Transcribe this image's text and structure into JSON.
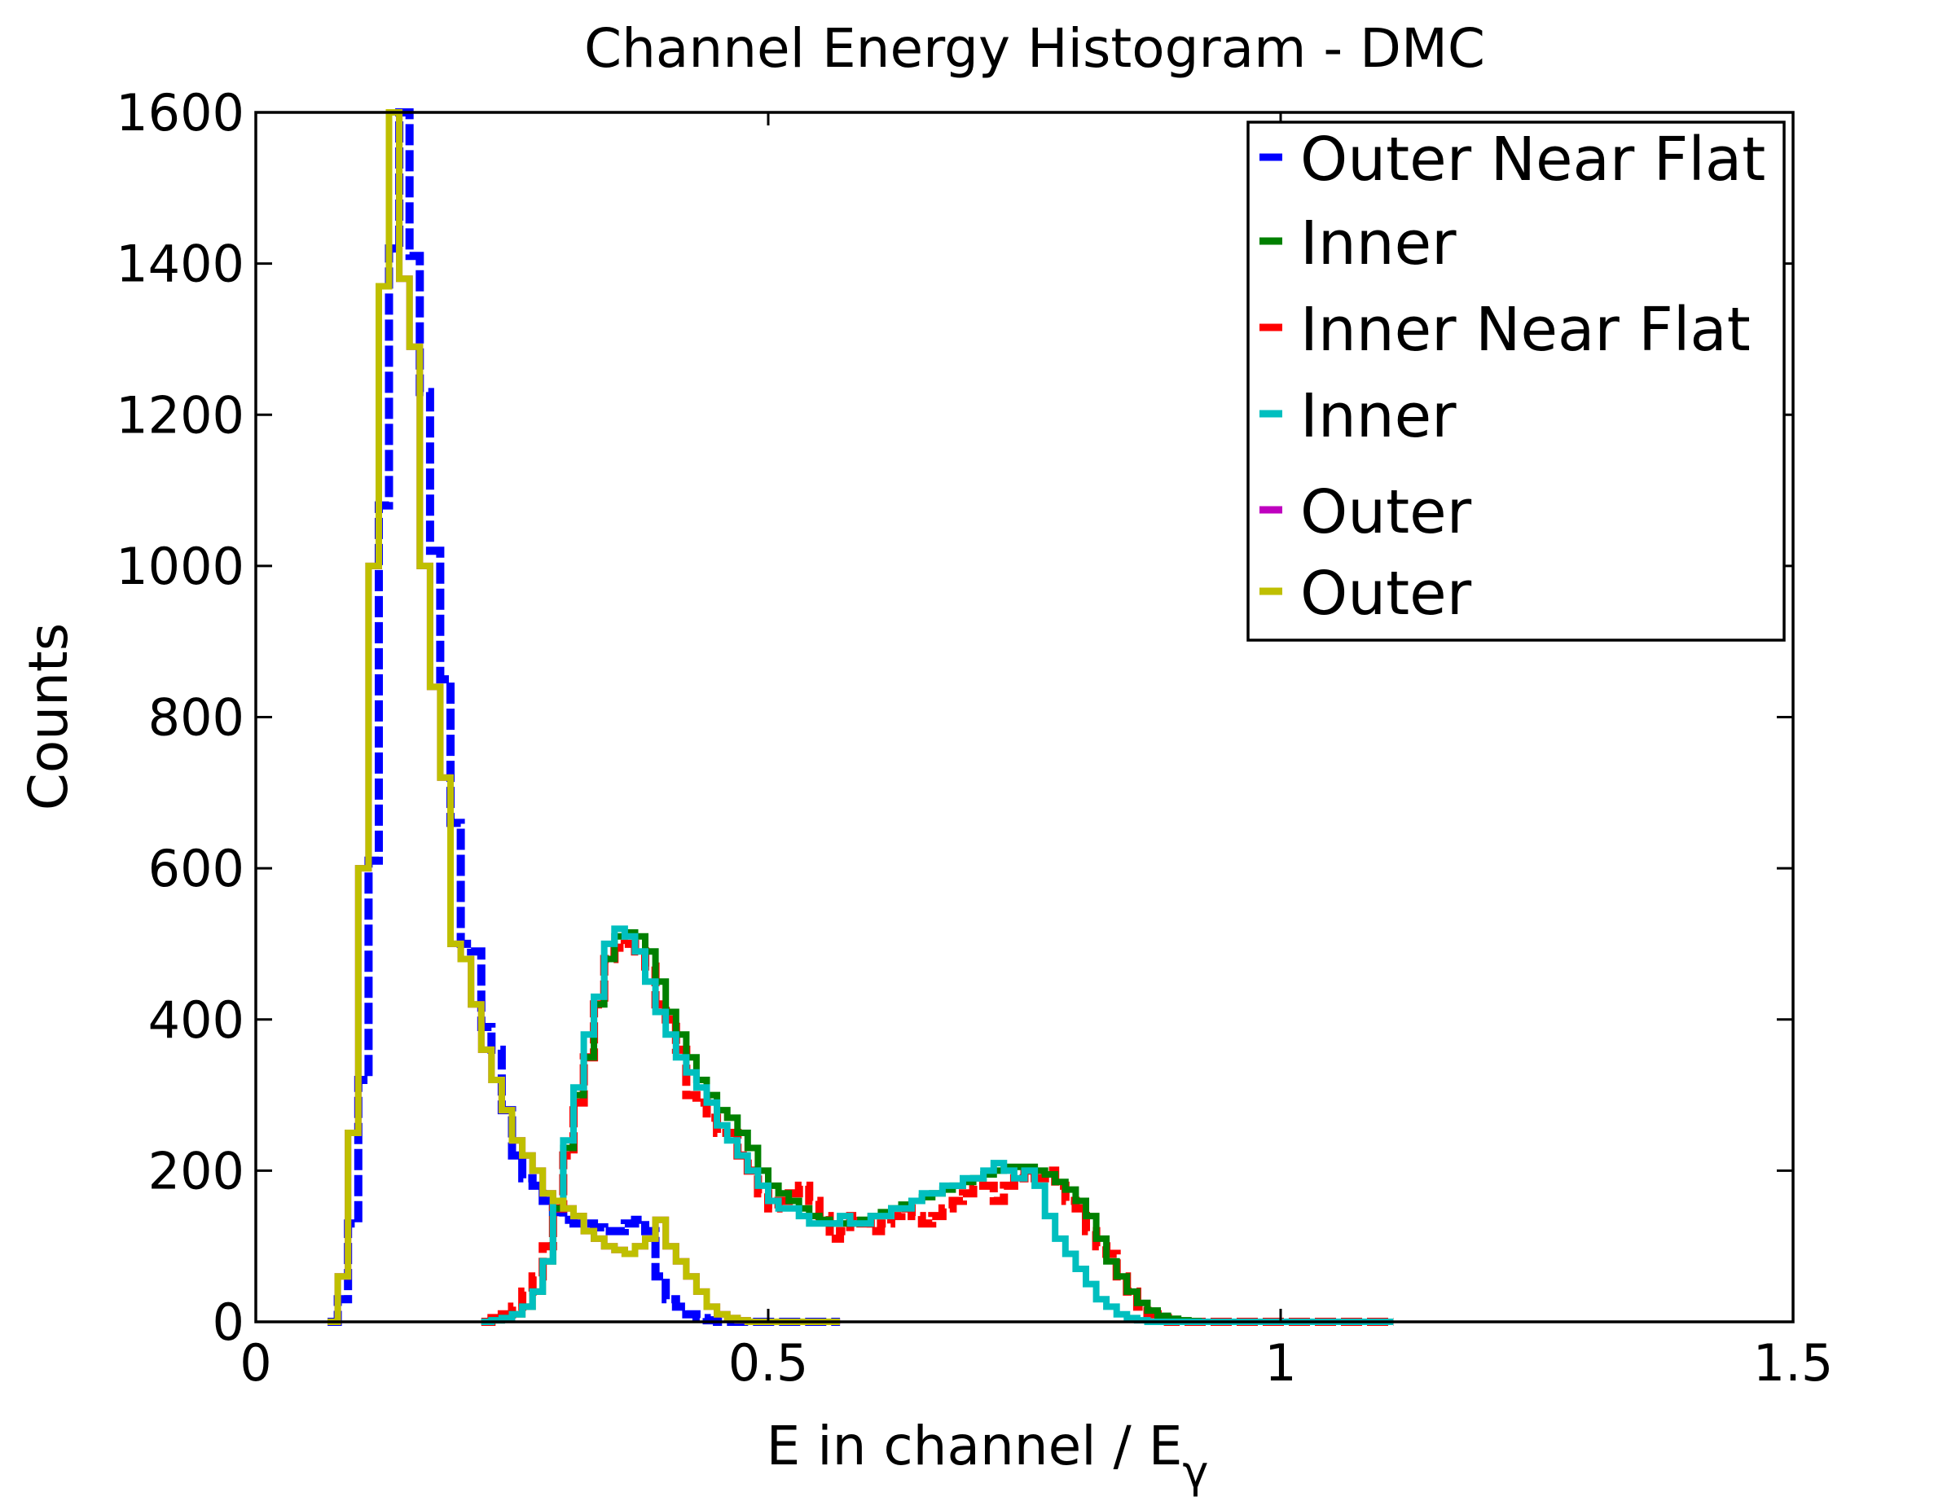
{
  "chart_data": {
    "type": "line",
    "style": "step-histogram",
    "title": "Channel Energy Histogram - DMC",
    "xlabel": "E in channel / E",
    "xlabel_subscript": "γ",
    "ylabel": "Counts",
    "xlim": [
      0,
      1.5
    ],
    "ylim": [
      0,
      1600
    ],
    "xticks": [
      0,
      0.5,
      1,
      1.5
    ],
    "xtick_labels": [
      "0",
      "0.5",
      "1",
      "1.5"
    ],
    "yticks": [
      0,
      200,
      400,
      600,
      800,
      1000,
      1200,
      1400,
      1600
    ],
    "ytick_labels": [
      "0",
      "200",
      "400",
      "600",
      "800",
      "1000",
      "1200",
      "1400",
      "1600"
    ],
    "grid": false,
    "legend_position": "top-right",
    "series": [
      {
        "name": "Outer Near Flat",
        "color": "#0000ff",
        "dashed": true,
        "x": [
          0.07,
          0.08,
          0.09,
          0.1,
          0.11,
          0.12,
          0.13,
          0.14,
          0.15,
          0.16,
          0.17,
          0.18,
          0.19,
          0.2,
          0.21,
          0.22,
          0.23,
          0.24,
          0.25,
          0.26,
          0.27,
          0.28,
          0.29,
          0.3,
          0.31,
          0.32,
          0.33,
          0.34,
          0.35,
          0.36,
          0.37,
          0.38,
          0.39,
          0.4,
          0.41,
          0.42,
          0.43,
          0.44,
          0.45,
          0.46,
          0.47,
          0.48,
          0.49,
          0.5,
          0.51,
          0.52,
          0.53,
          0.54,
          0.55,
          0.56
        ],
        "values": [
          0,
          30,
          130,
          320,
          610,
          1080,
          1420,
          1610,
          1410,
          1230,
          1020,
          850,
          660,
          500,
          490,
          390,
          360,
          280,
          220,
          190,
          180,
          160,
          145,
          135,
          130,
          130,
          125,
          120,
          120,
          130,
          135,
          120,
          60,
          30,
          20,
          10,
          5,
          2,
          0,
          0,
          0,
          0,
          0,
          0,
          0,
          0,
          0,
          0,
          0,
          0
        ]
      },
      {
        "name": "Inner",
        "color": "#008000",
        "dashed": false,
        "x": [
          0.22,
          0.23,
          0.24,
          0.25,
          0.26,
          0.27,
          0.28,
          0.29,
          0.3,
          0.31,
          0.32,
          0.33,
          0.34,
          0.35,
          0.36,
          0.37,
          0.38,
          0.39,
          0.4,
          0.41,
          0.42,
          0.43,
          0.44,
          0.45,
          0.46,
          0.47,
          0.48,
          0.49,
          0.5,
          0.51,
          0.52,
          0.53,
          0.54,
          0.55,
          0.56,
          0.57,
          0.58,
          0.59,
          0.6,
          0.61,
          0.62,
          0.63,
          0.64,
          0.65,
          0.66,
          0.67,
          0.68,
          0.69,
          0.7,
          0.71,
          0.72,
          0.73,
          0.74,
          0.75,
          0.76,
          0.77,
          0.78,
          0.79,
          0.8,
          0.81,
          0.82,
          0.83,
          0.84,
          0.85,
          0.86,
          0.87,
          0.88,
          0.89,
          0.9,
          0.91,
          0.92,
          0.93,
          0.94,
          0.95,
          0.96,
          0.97,
          0.98,
          0.99,
          1,
          1.01,
          1.02,
          1.03,
          1.04,
          1.05,
          1.06,
          1.07,
          1.08,
          1.09,
          1.1
        ],
        "values": [
          0,
          2,
          5,
          10,
          20,
          40,
          80,
          150,
          230,
          300,
          350,
          420,
          480,
          510,
          515,
          510,
          490,
          450,
          410,
          380,
          350,
          320,
          300,
          280,
          270,
          250,
          230,
          200,
          180,
          170,
          160,
          150,
          140,
          135,
          130,
          130,
          130,
          135,
          140,
          145,
          150,
          155,
          160,
          165,
          170,
          175,
          180,
          185,
          190,
          195,
          200,
          205,
          205,
          205,
          200,
          195,
          185,
          175,
          160,
          140,
          110,
          80,
          60,
          40,
          25,
          15,
          8,
          4,
          2,
          1,
          0,
          0,
          0,
          0,
          0,
          0,
          0,
          0,
          0,
          0,
          0,
          0,
          0,
          0,
          0,
          0,
          0,
          0,
          0
        ]
      },
      {
        "name": "Inner Near Flat",
        "color": "#ff0000",
        "dashed": true,
        "x": [
          0.22,
          0.23,
          0.24,
          0.25,
          0.26,
          0.27,
          0.28,
          0.29,
          0.3,
          0.31,
          0.32,
          0.33,
          0.34,
          0.35,
          0.36,
          0.37,
          0.38,
          0.39,
          0.4,
          0.41,
          0.42,
          0.43,
          0.44,
          0.45,
          0.46,
          0.47,
          0.48,
          0.49,
          0.5,
          0.51,
          0.52,
          0.53,
          0.54,
          0.55,
          0.56,
          0.57,
          0.58,
          0.59,
          0.6,
          0.61,
          0.62,
          0.63,
          0.64,
          0.65,
          0.66,
          0.67,
          0.68,
          0.69,
          0.7,
          0.71,
          0.72,
          0.73,
          0.74,
          0.75,
          0.76,
          0.77,
          0.78,
          0.79,
          0.8,
          0.81,
          0.82,
          0.83,
          0.84,
          0.85,
          0.86,
          0.87,
          0.88,
          0.89,
          0.9,
          0.91,
          0.92,
          0.93,
          0.94,
          0.95,
          0.96,
          0.97,
          0.98,
          0.99,
          1,
          1.01,
          1.02,
          1.03,
          1.04,
          1.05,
          1.06,
          1.07,
          1.08,
          1.09,
          1.1
        ],
        "values": [
          0,
          5,
          10,
          20,
          40,
          60,
          100,
          150,
          220,
          290,
          350,
          420,
          480,
          495,
          500,
          490,
          470,
          420,
          400,
          360,
          300,
          290,
          270,
          250,
          250,
          220,
          200,
          170,
          150,
          160,
          170,
          180,
          160,
          140,
          110,
          120,
          140,
          130,
          120,
          130,
          140,
          150,
          140,
          130,
          140,
          150,
          160,
          170,
          180,
          180,
          160,
          180,
          190,
          200,
          190,
          200,
          180,
          160,
          150,
          120,
          100,
          90,
          60,
          40,
          20,
          10,
          5,
          0,
          0,
          0,
          0,
          0,
          0,
          0,
          0,
          0,
          0,
          0,
          0,
          0,
          0,
          0,
          0,
          0,
          0,
          0,
          0,
          0,
          0
        ]
      },
      {
        "name": "Inner",
        "color": "#00bfbf",
        "dashed": false,
        "x": [
          0.22,
          0.23,
          0.24,
          0.25,
          0.26,
          0.27,
          0.28,
          0.29,
          0.3,
          0.31,
          0.32,
          0.33,
          0.34,
          0.35,
          0.36,
          0.37,
          0.38,
          0.39,
          0.4,
          0.41,
          0.42,
          0.43,
          0.44,
          0.45,
          0.46,
          0.47,
          0.48,
          0.49,
          0.5,
          0.51,
          0.52,
          0.53,
          0.54,
          0.55,
          0.56,
          0.57,
          0.58,
          0.59,
          0.6,
          0.61,
          0.62,
          0.63,
          0.64,
          0.65,
          0.66,
          0.67,
          0.68,
          0.69,
          0.7,
          0.71,
          0.72,
          0.73,
          0.74,
          0.75,
          0.76,
          0.77,
          0.78,
          0.79,
          0.8,
          0.81,
          0.82,
          0.83,
          0.84,
          0.85,
          0.86,
          0.87,
          0.88,
          0.89,
          0.9,
          0.91,
          0.92,
          0.93,
          0.94,
          0.95,
          0.96,
          0.97,
          0.98,
          0.99,
          1,
          1.01,
          1.02,
          1.03,
          1.04,
          1.05,
          1.06,
          1.07,
          1.08,
          1.09,
          1.1
        ],
        "values": [
          0,
          2,
          5,
          10,
          20,
          40,
          80,
          160,
          240,
          310,
          380,
          430,
          500,
          520,
          510,
          490,
          450,
          410,
          380,
          350,
          330,
          310,
          290,
          260,
          240,
          220,
          200,
          180,
          160,
          150,
          150,
          140,
          130,
          130,
          130,
          140,
          130,
          130,
          140,
          140,
          150,
          150,
          160,
          170,
          170,
          180,
          180,
          190,
          190,
          200,
          210,
          200,
          190,
          200,
          180,
          140,
          110,
          90,
          70,
          50,
          30,
          20,
          10,
          5,
          2,
          0,
          0,
          0,
          0,
          0,
          0,
          0,
          0,
          0,
          0,
          0,
          0,
          0,
          0,
          0,
          0,
          0,
          0,
          0,
          0,
          0,
          0,
          0,
          0
        ]
      },
      {
        "name": "Outer",
        "color": "#bf00bf",
        "dashed": false,
        "x": [
          0.07,
          0.08,
          0.09,
          0.1,
          0.11,
          0.12,
          0.13,
          0.14,
          0.15,
          0.16,
          0.17,
          0.18,
          0.19,
          0.2,
          0.21,
          0.22,
          0.23,
          0.24,
          0.25,
          0.26,
          0.27,
          0.28,
          0.29,
          0.3,
          0.31,
          0.32,
          0.33,
          0.34,
          0.35,
          0.36,
          0.37,
          0.38,
          0.39,
          0.4,
          0.41,
          0.42,
          0.43,
          0.44,
          0.45,
          0.46,
          0.47,
          0.48,
          0.49,
          0.5,
          0.51,
          0.52,
          0.53,
          0.54,
          0.55,
          0.56
        ],
        "values": [
          0,
          60,
          250,
          600,
          1000,
          1370,
          1600,
          1380,
          1290,
          1000,
          840,
          720,
          500,
          480,
          420,
          360,
          320,
          280,
          240,
          220,
          200,
          170,
          160,
          150,
          140,
          120,
          110,
          100,
          95,
          90,
          100,
          110,
          135,
          100,
          80,
          60,
          40,
          20,
          10,
          5,
          2,
          0,
          0,
          0,
          0,
          0,
          0,
          0,
          0,
          0
        ]
      },
      {
        "name": "Outer",
        "color": "#bfbf00",
        "dashed": false,
        "x": [
          0.07,
          0.08,
          0.09,
          0.1,
          0.11,
          0.12,
          0.13,
          0.14,
          0.15,
          0.16,
          0.17,
          0.18,
          0.19,
          0.2,
          0.21,
          0.22,
          0.23,
          0.24,
          0.25,
          0.26,
          0.27,
          0.28,
          0.29,
          0.3,
          0.31,
          0.32,
          0.33,
          0.34,
          0.35,
          0.36,
          0.37,
          0.38,
          0.39,
          0.4,
          0.41,
          0.42,
          0.43,
          0.44,
          0.45,
          0.46,
          0.47,
          0.48,
          0.49,
          0.5,
          0.51,
          0.52,
          0.53,
          0.54,
          0.55,
          0.56
        ],
        "values": [
          0,
          60,
          250,
          600,
          1000,
          1370,
          1600,
          1380,
          1290,
          1000,
          840,
          720,
          500,
          480,
          420,
          360,
          320,
          280,
          240,
          220,
          200,
          170,
          160,
          150,
          140,
          120,
          110,
          100,
          95,
          90,
          100,
          110,
          135,
          100,
          80,
          60,
          40,
          20,
          10,
          5,
          2,
          0,
          0,
          0,
          0,
          0,
          0,
          0,
          0,
          0
        ]
      }
    ]
  }
}
